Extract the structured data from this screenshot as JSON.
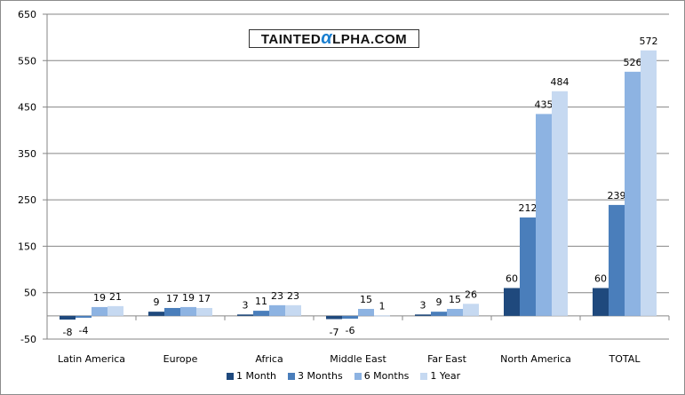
{
  "chart_data": {
    "type": "bar",
    "title": "",
    "watermark": "TAINTEDALPHA.COM",
    "xlabel": "",
    "ylabel": "",
    "ylim": [
      -50,
      650
    ],
    "yticks": [
      -50,
      50,
      150,
      250,
      350,
      450,
      550,
      650
    ],
    "grid": true,
    "legend_position": "bottom",
    "categories": [
      "Latin America",
      "Europe",
      "Africa",
      "Middle East",
      "Far East",
      "North America",
      "TOTAL"
    ],
    "series": [
      {
        "name": "1 Month",
        "color": "#1f497d",
        "values": [
          -8,
          9,
          3,
          -7,
          3,
          60,
          60
        ]
      },
      {
        "name": "3 Months",
        "color": "#4a7ebb",
        "values": [
          -4,
          17,
          11,
          -6,
          9,
          212,
          239
        ]
      },
      {
        "name": "6 Months",
        "color": "#8db3e2",
        "values": [
          19,
          19,
          23,
          15,
          15,
          435,
          526
        ]
      },
      {
        "name": "1 Year",
        "color": "#c6d9f1",
        "values": [
          21,
          17,
          23,
          1,
          26,
          484,
          572
        ]
      }
    ]
  }
}
